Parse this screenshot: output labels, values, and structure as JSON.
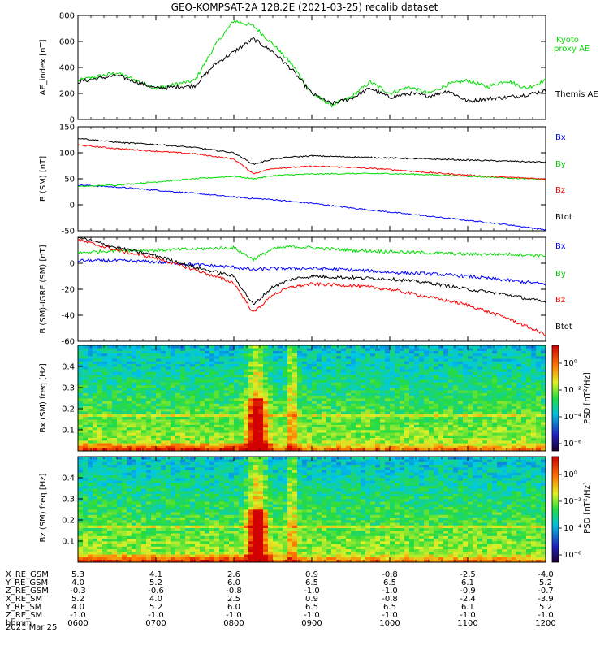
{
  "title": "GEO-KOMPSAT-2A 128.2E (2021-03-25) recalib dataset",
  "date_label": "2021 Mar 25",
  "colors": {
    "black": "#000000",
    "red": "#ff0000",
    "green": "#00dd00",
    "blue": "#0000ff"
  },
  "chart_data": [
    {
      "type": "line",
      "ylabel": "AE_index [nT]",
      "ylim": [
        0,
        800
      ],
      "yticks": [
        "0",
        "200",
        "400",
        "600",
        "800"
      ],
      "x_hours": [
        6.0,
        6.5,
        7.0,
        7.5,
        7.75,
        8.0,
        8.25,
        8.5,
        8.75,
        9.0,
        9.25,
        9.5,
        9.75,
        10.0,
        10.25,
        10.5,
        10.75,
        11.0,
        11.25,
        11.5,
        11.75,
        12.0
      ],
      "series": [
        {
          "name": "Kyoto proxy AE",
          "color": "green",
          "values": [
            300,
            360,
            240,
            300,
            560,
            760,
            720,
            580,
            420,
            200,
            110,
            170,
            290,
            200,
            250,
            200,
            270,
            300,
            250,
            300,
            240,
            300
          ]
        },
        {
          "name": "Themis AE",
          "color": "black",
          "values": [
            290,
            340,
            240,
            260,
            420,
            520,
            620,
            520,
            380,
            200,
            120,
            160,
            240,
            170,
            200,
            180,
            220,
            140,
            160,
            170,
            190,
            220
          ]
        }
      ]
    },
    {
      "type": "line",
      "ylabel": "B (SM) [nT]",
      "ylim": [
        -50,
        150
      ],
      "yticks": [
        "-50",
        "0",
        "50",
        "100",
        "150"
      ],
      "x_hours": [
        6.0,
        6.5,
        7.0,
        7.5,
        8.0,
        8.25,
        8.5,
        8.75,
        9.0,
        9.5,
        10.0,
        10.5,
        11.0,
        11.5,
        12.0
      ],
      "series": [
        {
          "name": "Bx",
          "color": "blue",
          "values": [
            38,
            34,
            28,
            22,
            15,
            12,
            10,
            6,
            3,
            -6,
            -14,
            -22,
            -30,
            -38,
            -48
          ]
        },
        {
          "name": "By",
          "color": "green",
          "values": [
            35,
            38,
            44,
            50,
            55,
            50,
            56,
            58,
            59,
            60,
            60,
            58,
            55,
            52,
            48
          ]
        },
        {
          "name": "Bz",
          "color": "red",
          "values": [
            115,
            108,
            103,
            98,
            88,
            60,
            70,
            72,
            74,
            72,
            68,
            62,
            57,
            53,
            50
          ]
        },
        {
          "name": "Btot",
          "color": "black",
          "values": [
            128,
            120,
            116,
            110,
            100,
            78,
            88,
            92,
            94,
            92,
            90,
            88,
            86,
            84,
            82
          ]
        }
      ]
    },
    {
      "type": "line",
      "ylabel": "B (SM)-IGRF (SM) [nT]",
      "ylim": [
        -60,
        20
      ],
      "yticks": [
        "-60",
        "-40",
        "-20",
        "0"
      ],
      "x_hours": [
        6.0,
        6.5,
        7.0,
        7.5,
        8.0,
        8.25,
        8.5,
        8.75,
        9.0,
        9.5,
        10.0,
        10.5,
        11.0,
        11.5,
        12.0
      ],
      "series": [
        {
          "name": "Bx",
          "color": "blue",
          "values": [
            2,
            2,
            1,
            -1,
            -3,
            -5,
            -4,
            -4,
            -4,
            -5,
            -7,
            -8,
            -10,
            -13,
            -16
          ]
        },
        {
          "name": "By",
          "color": "green",
          "values": [
            8,
            10,
            10,
            11,
            12,
            3,
            11,
            13,
            12,
            10,
            9,
            8,
            7,
            7,
            6
          ]
        },
        {
          "name": "Bz",
          "color": "red",
          "values": [
            18,
            10,
            4,
            -5,
            -15,
            -38,
            -24,
            -18,
            -16,
            -17,
            -20,
            -26,
            -32,
            -42,
            -55
          ]
        },
        {
          "name": "Btot",
          "color": "black",
          "values": [
            20,
            12,
            6,
            -3,
            -10,
            -32,
            -18,
            -12,
            -10,
            -11,
            -12,
            -15,
            -20,
            -24,
            -30
          ]
        }
      ]
    },
    {
      "type": "heatmap",
      "ylabel": "Bx (SM) freq [Hz]",
      "yticks": [
        "0.1",
        "0.2",
        "0.3",
        "0.4"
      ],
      "colorbar_label": "PSD [nT²/Hz]",
      "colorbar_ticks": [
        "10⁰",
        "10⁻²",
        "10⁻⁴",
        "10⁻⁶"
      ]
    },
    {
      "type": "heatmap",
      "ylabel": "Bz (SM) freq [Hz]",
      "yticks": [
        "0.1",
        "0.2",
        "0.3",
        "0.4"
      ],
      "colorbar_label": "PSD [nT²/Hz]",
      "colorbar_ticks": [
        "10⁰",
        "10⁻²",
        "10⁻⁴",
        "10⁻⁶"
      ]
    }
  ],
  "legend_ae": [
    {
      "text": "Kyoto",
      "color": "green"
    },
    {
      "text": "proxy AE",
      "color": "green"
    },
    {
      "text": "Themis AE",
      "color": "black"
    }
  ],
  "legend_b": [
    {
      "text": "Bx",
      "color": "blue"
    },
    {
      "text": "By",
      "color": "green"
    },
    {
      "text": "Bz",
      "color": "red"
    },
    {
      "text": "Btot",
      "color": "black"
    }
  ],
  "ephemeris": {
    "row_labels": [
      "X_RE_GSM",
      "Y_RE_GSM",
      "Z_RE_GSM",
      "X_RE_SM",
      "Y_RE_SM",
      "Z_RE_SM",
      "hhmm"
    ],
    "columns": [
      [
        "5.3",
        "4.0",
        "-0.3",
        "5.2",
        "4.0",
        "-1.0",
        "0600"
      ],
      [
        "4.1",
        "5.2",
        "-0.6",
        "4.0",
        "5.2",
        "-1.0",
        "0700"
      ],
      [
        "2.6",
        "6.0",
        "-0.8",
        "2.5",
        "6.0",
        "-1.0",
        "0800"
      ],
      [
        "0.9",
        "6.5",
        "-1.0",
        "0.9",
        "6.5",
        "-1.0",
        "0900"
      ],
      [
        "-0.8",
        "6.5",
        "-1.0",
        "-0.8",
        "6.5",
        "-1.0",
        "1000"
      ],
      [
        "-2.5",
        "6.1",
        "-0.9",
        "-2.4",
        "6.1",
        "-1.0",
        "1100"
      ],
      [
        "-4.0",
        "5.2",
        "-0.7",
        "-3.9",
        "5.2",
        "-1.0",
        "1200"
      ]
    ]
  }
}
